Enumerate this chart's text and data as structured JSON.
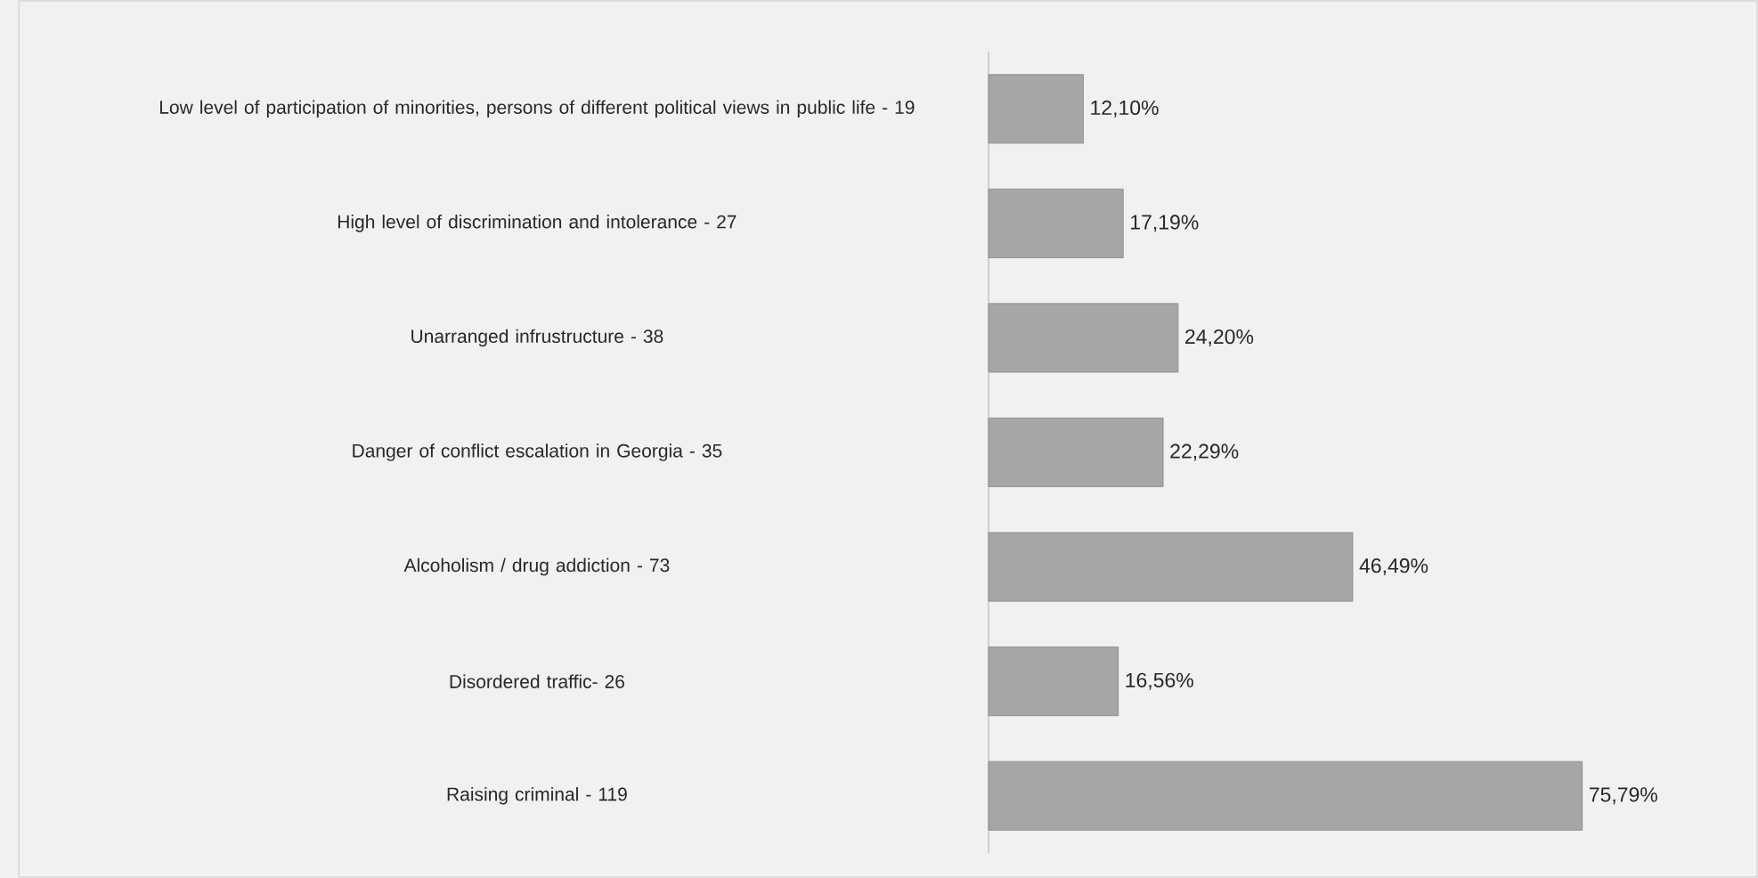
{
  "chart_data": {
    "type": "bar",
    "orientation": "horizontal",
    "categories": [
      "Low level of participation of minorities, persons of different political views in public life - 19",
      "High level of discrimination and intolerance - 27",
      "Unarranged infrustructure  - 38",
      "Danger of conflict escalation in Georgia  - 35",
      "Alcoholism / drug addiction  - 73",
      "Disordered traffic- 26",
      "Raising criminal - 119"
    ],
    "values": [
      12.1,
      17.19,
      24.2,
      22.29,
      46.49,
      16.56,
      75.79
    ],
    "value_labels": [
      "12,10%",
      "17,19%",
      "24,20%",
      "22,29%",
      "46,49%",
      "16,56%",
      "75,79%"
    ],
    "color": "#a6a6a6"
  }
}
